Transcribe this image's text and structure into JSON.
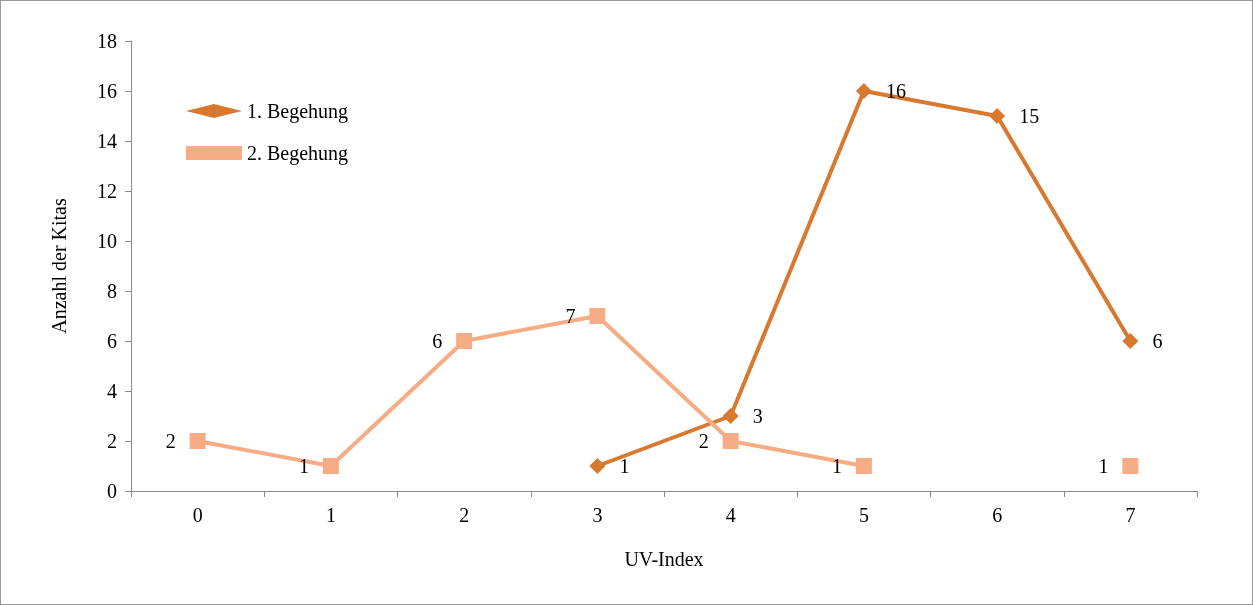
{
  "chart_data": {
    "type": "line",
    "xlabel": "UV-Index",
    "ylabel": "Anzahl der Kitas",
    "categories": [
      "0",
      "1",
      "2",
      "3",
      "4",
      "5",
      "6",
      "7"
    ],
    "series": [
      {
        "name": "1. Begehung",
        "color": "#d8792f",
        "marker": "diamond",
        "values": [
          null,
          null,
          null,
          1,
          3,
          16,
          15,
          6
        ]
      },
      {
        "name": "2. Begehung",
        "color": "#f6ad86",
        "marker": "square",
        "values": [
          2,
          1,
          6,
          7,
          2,
          1,
          null,
          1
        ]
      }
    ],
    "ylim": [
      0,
      18
    ],
    "yticks": [
      0,
      2,
      4,
      6,
      8,
      10,
      12,
      14,
      16,
      18
    ],
    "grid": false,
    "legend": "top left",
    "data_labels": true
  }
}
